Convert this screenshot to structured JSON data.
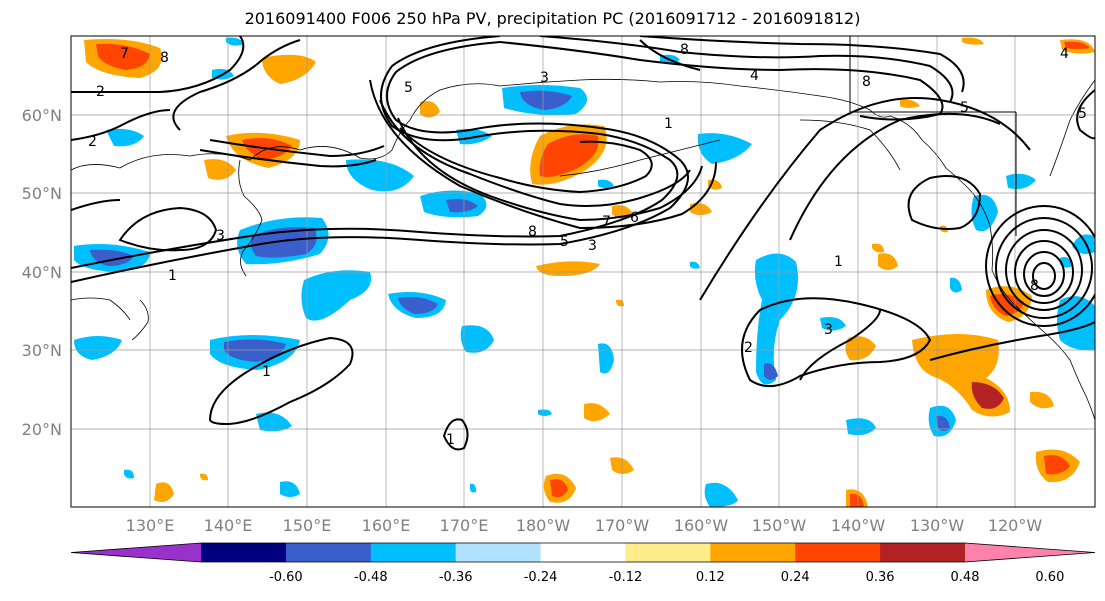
{
  "title": "2016091400 F006 250 hPa PV, precipitation PC (2016091712 - 2016091812)",
  "lat_labels": [
    "60°N",
    "50°N",
    "40°N",
    "30°N",
    "20°N"
  ],
  "lon_labels": [
    "130°E",
    "140°E",
    "150°E",
    "160°E",
    "170°E",
    "180°W",
    "170°W",
    "160°W",
    "150°W",
    "140°W",
    "130°W",
    "120°W"
  ],
  "colorbar": {
    "colors": [
      "#9932cc",
      "#000080",
      "#3a5fcd",
      "#00bfff",
      "#b0e2ff",
      "#ffffff",
      "#ffec8b",
      "#ffa500",
      "#ff4500",
      "#b22222",
      "#ff82ab"
    ],
    "tick_labels": [
      "-0.60",
      "-0.48",
      "-0.36",
      "-0.24",
      "-0.12",
      "0.12",
      "0.24",
      "0.36",
      "0.48",
      "0.60"
    ],
    "extend": "both"
  },
  "contour_labels": [
    "2",
    "2",
    "3",
    "1",
    "8",
    "3",
    "4",
    "8",
    "5",
    "1",
    "8",
    "5",
    "3",
    "7",
    "6",
    "8",
    "1",
    "2",
    "3",
    "1",
    "1",
    "5",
    "8",
    "7",
    "4",
    "5"
  ]
}
